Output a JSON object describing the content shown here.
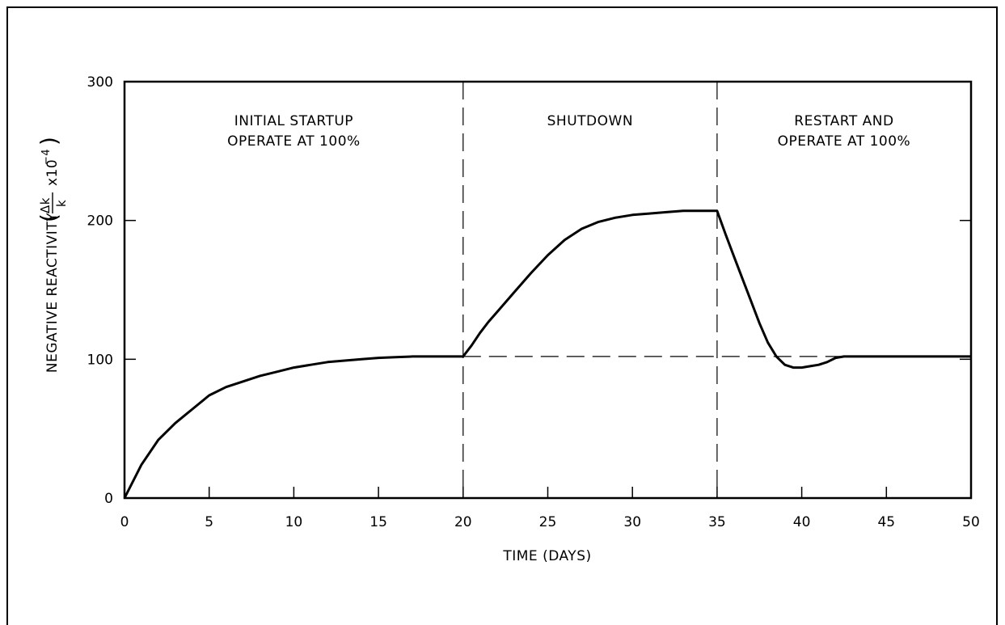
{
  "chart_data": {
    "type": "line",
    "xlabel": "TIME (DAYS)",
    "ylabel": {
      "main": "NEGATIVE REACTIVITY",
      "frac_num": "Δk",
      "frac_den": "k",
      "multiplier": "x10",
      "exponent": "−4",
      "open_paren": "(",
      "close_paren": ")"
    },
    "xlim": [
      0,
      50
    ],
    "ylim": [
      0,
      300
    ],
    "x_ticks": [
      0,
      5,
      10,
      15,
      20,
      25,
      30,
      35,
      40,
      45,
      50
    ],
    "x_tick_labels": [
      "0",
      "5",
      "10",
      "15",
      "20",
      "25",
      "30",
      "35",
      "40",
      "45",
      "50"
    ],
    "y_ticks": [
      0,
      100,
      200,
      300
    ],
    "y_tick_labels": [
      "0",
      "100",
      "200",
      "300"
    ],
    "grid": false,
    "phase_boundaries": [
      20,
      35
    ],
    "reference_line_y": 102,
    "phases": [
      {
        "line1": "INITIAL STARTUP",
        "line2": "OPERATE AT 100%"
      },
      {
        "line1": "SHUTDOWN",
        "line2": ""
      },
      {
        "line1": "RESTART AND",
        "line2": "OPERATE AT 100%"
      }
    ],
    "series": [
      {
        "x": [
          0,
          1,
          2,
          3,
          4,
          5,
          6,
          7,
          8,
          9,
          10,
          11,
          12,
          13,
          14,
          15,
          16,
          17,
          18,
          19,
          20,
          20.5,
          21,
          21.5,
          22,
          23,
          24,
          25,
          26,
          27,
          28,
          29,
          30,
          31,
          32,
          33,
          34,
          35,
          35.5,
          36,
          36.5,
          37,
          37.5,
          38,
          38.5,
          39,
          39.5,
          40,
          40.5,
          41,
          41.5,
          42,
          42.5,
          43,
          44,
          45,
          46,
          47,
          48,
          49,
          50
        ],
        "y": [
          0,
          24,
          42,
          54,
          64,
          74,
          80,
          84,
          88,
          91,
          94,
          96,
          98,
          99,
          100,
          101,
          101.5,
          102,
          102,
          102,
          102,
          110,
          119,
          127,
          134,
          148,
          162,
          175,
          186,
          194,
          199,
          202,
          204,
          205,
          206,
          207,
          207,
          207,
          190,
          174,
          158,
          142,
          126,
          112,
          102,
          96,
          94,
          94,
          95,
          96,
          98,
          101,
          102,
          102,
          102,
          102,
          102,
          102,
          102,
          102,
          102
        ]
      }
    ]
  }
}
